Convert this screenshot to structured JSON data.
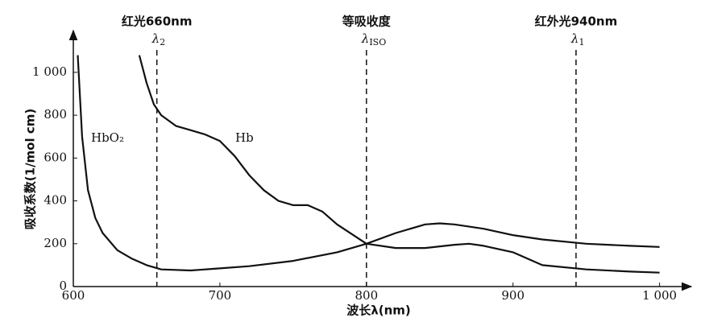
{
  "chart_data": {
    "type": "line",
    "x_label": "波长λ(nm)",
    "y_label": "吸收系数(1/mol cm)",
    "xlim": [
      600,
      1020
    ],
    "ylim": [
      0,
      1180
    ],
    "xticks": [
      600,
      700,
      800,
      900,
      {
        "value": 1000,
        "label": "1 000"
      }
    ],
    "yticks": [
      0,
      200,
      400,
      600,
      800,
      {
        "value": 1000,
        "label": "1 000"
      }
    ],
    "series": [
      {
        "name": "HbO₂",
        "color": "#111111",
        "x": [
          603,
          606,
          610,
          615,
          620,
          630,
          640,
          650,
          660,
          680,
          700,
          720,
          750,
          780,
          800,
          820,
          840,
          850,
          860,
          880,
          900,
          920,
          950,
          980,
          1000
        ],
        "values": [
          1080,
          700,
          450,
          320,
          250,
          170,
          130,
          100,
          80,
          75,
          85,
          95,
          120,
          160,
          200,
          250,
          290,
          295,
          290,
          270,
          240,
          220,
          200,
          190,
          185
        ]
      },
      {
        "name": "Hb",
        "color": "#111111",
        "x": [
          645,
          650,
          655,
          660,
          670,
          680,
          690,
          700,
          710,
          720,
          730,
          740,
          750,
          760,
          770,
          780,
          800,
          820,
          840,
          860,
          870,
          880,
          900,
          920,
          950,
          980,
          1000
        ],
        "values": [
          1080,
          950,
          850,
          800,
          750,
          730,
          710,
          680,
          610,
          520,
          450,
          400,
          380,
          380,
          350,
          290,
          200,
          180,
          180,
          195,
          200,
          190,
          160,
          100,
          80,
          70,
          65
        ]
      }
    ],
    "markers": [
      {
        "x": 657,
        "label": "红光660nm",
        "symbol": "λ",
        "sub": "2"
      },
      {
        "x": 800,
        "label": "等吸收度",
        "symbol": "λ",
        "sub": "ISO"
      },
      {
        "x": 943,
        "label": "红外光940nm",
        "symbol": "λ",
        "sub": "1"
      }
    ]
  }
}
